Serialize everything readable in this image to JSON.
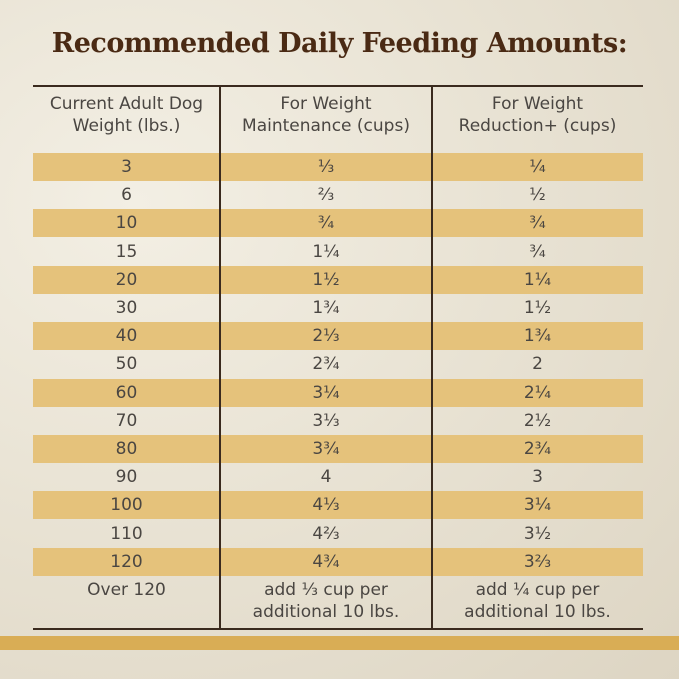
{
  "title": "Recommended Daily Feeding Amounts:",
  "table": {
    "header": [
      "Current Adult Dog\nWeight (lbs.)",
      "For Weight\nMaintenance (cups)",
      "For Weight\nReduction+ (cups)"
    ],
    "rows": [
      [
        "3",
        "⅓",
        "¼"
      ],
      [
        "6",
        "⅔",
        "½"
      ],
      [
        "10",
        "¾",
        "¾"
      ],
      [
        "15",
        "1¼",
        "¾"
      ],
      [
        "20",
        "1½",
        "1¼"
      ],
      [
        "30",
        "1¾",
        "1½"
      ],
      [
        "40",
        "2⅓",
        "1¾"
      ],
      [
        "50",
        "2¾",
        "2"
      ],
      [
        "60",
        "3¼",
        "2¼"
      ],
      [
        "70",
        "3⅓",
        "2½"
      ],
      [
        "80",
        "3¾",
        "2¾"
      ],
      [
        "90",
        "4",
        "3"
      ],
      [
        "100",
        "4⅓",
        "3¼"
      ],
      [
        "110",
        "4⅔",
        "3½"
      ],
      [
        "120",
        "4¾",
        "3⅔"
      ],
      [
        "Over 120",
        "add ⅓ cup per\nadditional 10 lbs.",
        "add ¼ cup per\nadditional 10 lbs."
      ]
    ]
  }
}
